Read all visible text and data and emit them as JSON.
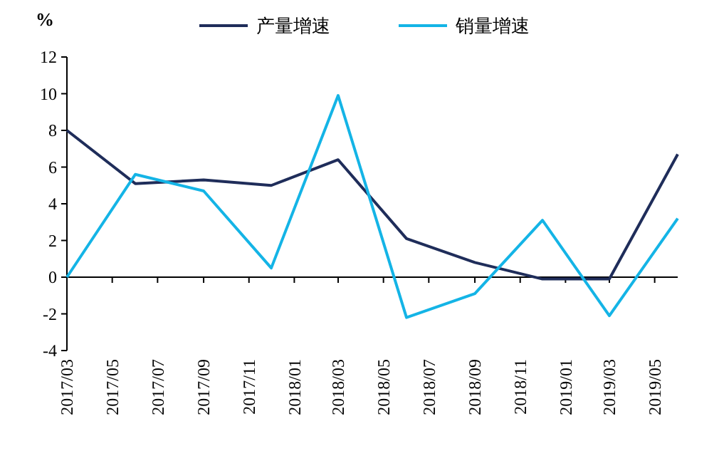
{
  "chart_data": {
    "type": "line",
    "ylabel": "%",
    "x": [
      "2017-03",
      "2017-06",
      "2017-09",
      "2017-12",
      "2018-03",
      "2018-06",
      "2018-09",
      "2018-12",
      "2019-03",
      "2019-06"
    ],
    "series": [
      {
        "name": "产量增速",
        "color": "#1f2d5a",
        "values": [
          8.0,
          5.1,
          5.3,
          5.0,
          6.4,
          2.1,
          0.8,
          -0.1,
          -0.1,
          6.7
        ]
      },
      {
        "name": "销量增速",
        "color": "#14b4e6",
        "values": [
          0.0,
          5.6,
          4.7,
          0.5,
          9.9,
          -2.2,
          -0.9,
          3.1,
          -2.1,
          3.2
        ]
      }
    ],
    "xlim": [
      "2017-03",
      "2019-06"
    ],
    "xticks": [
      {
        "value": "2017-03",
        "label": "2017/03"
      },
      {
        "value": "2017-05",
        "label": "2017/05"
      },
      {
        "value": "2017-07",
        "label": "2017/07"
      },
      {
        "value": "2017-09",
        "label": "2017/09"
      },
      {
        "value": "2017-11",
        "label": "2017/11"
      },
      {
        "value": "2018-01",
        "label": "2018/01"
      },
      {
        "value": "2018-03",
        "label": "2018/03"
      },
      {
        "value": "2018-05",
        "label": "2018/05"
      },
      {
        "value": "2018-07",
        "label": "2018/07"
      },
      {
        "value": "2018-09",
        "label": "2018/09"
      },
      {
        "value": "2018-11",
        "label": "2018/11"
      },
      {
        "value": "2019-01",
        "label": "2019/01"
      },
      {
        "value": "2019-03",
        "label": "2019/03"
      },
      {
        "value": "2019-05",
        "label": "2019/05"
      }
    ],
    "ylim": [
      -4,
      12
    ],
    "yticks": [
      -4,
      -2,
      0,
      2,
      4,
      6,
      8,
      10,
      12
    ],
    "legend": "top",
    "marker": "none",
    "line_style": "solid"
  }
}
